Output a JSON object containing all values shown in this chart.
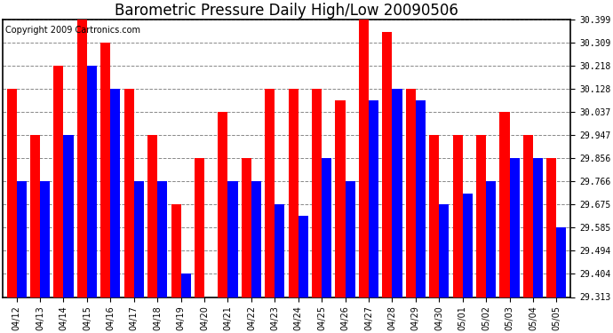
{
  "title": "Barometric Pressure Daily High/Low 20090506",
  "copyright": "Copyright 2009 Cartronics.com",
  "dates": [
    "04/12",
    "04/13",
    "04/14",
    "04/15",
    "04/16",
    "04/17",
    "04/18",
    "04/19",
    "04/20",
    "04/21",
    "04/22",
    "04/23",
    "04/24",
    "04/25",
    "04/26",
    "04/27",
    "04/28",
    "04/29",
    "04/30",
    "05/01",
    "05/02",
    "05/03",
    "05/04",
    "05/05"
  ],
  "highs": [
    30.128,
    29.947,
    30.218,
    30.399,
    30.309,
    30.128,
    29.947,
    29.675,
    29.856,
    30.037,
    29.856,
    30.128,
    30.128,
    30.128,
    30.083,
    30.399,
    30.352,
    30.128,
    29.947,
    29.947,
    29.947,
    30.037,
    29.947,
    29.856
  ],
  "lows": [
    29.766,
    29.766,
    29.947,
    30.218,
    30.128,
    29.766,
    29.766,
    29.404,
    29.313,
    29.766,
    29.766,
    29.675,
    29.63,
    29.856,
    29.766,
    30.083,
    30.128,
    30.083,
    29.675,
    29.72,
    29.766,
    29.856,
    29.856,
    29.585
  ],
  "ymin": 29.313,
  "ymax": 30.399,
  "yticks": [
    29.313,
    29.404,
    29.494,
    29.585,
    29.675,
    29.766,
    29.856,
    29.947,
    30.037,
    30.128,
    30.218,
    30.309,
    30.399
  ],
  "bar_width": 0.42,
  "high_color": "#ff0000",
  "low_color": "#0000ff",
  "bg_color": "#ffffff",
  "grid_color": "#888888",
  "title_fontsize": 12,
  "copyright_fontsize": 7,
  "tick_fontsize": 7
}
